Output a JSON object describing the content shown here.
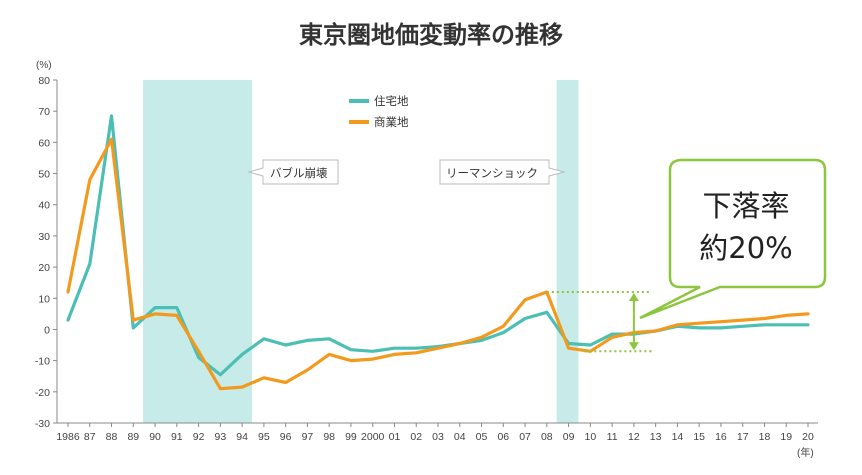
{
  "chart_data": {
    "type": "line",
    "title": "東京圏地価変動率の推移",
    "ylabel": "(%)",
    "xlabel": "(年)",
    "ylim": [
      -30,
      80
    ],
    "yticks": [
      80,
      70,
      60,
      50,
      40,
      30,
      20,
      10,
      0,
      -10,
      -20,
      -30
    ],
    "ytick_labels": [
      "80",
      "70",
      "60",
      "50",
      "40",
      "30",
      "20",
      "10",
      "0",
      "-10",
      "-20",
      "-30"
    ],
    "categories": [
      "1986",
      "87",
      "88",
      "89",
      "90",
      "91",
      "92",
      "93",
      "94",
      "95",
      "96",
      "97",
      "98",
      "99",
      "2000",
      "01",
      "02",
      "03",
      "04",
      "05",
      "06",
      "07",
      "08",
      "09",
      "10",
      "11",
      "12",
      "13",
      "14",
      "15",
      "16",
      "17",
      "18",
      "19",
      "20"
    ],
    "series": [
      {
        "name": "住宅地",
        "color": "#4bbfb3",
        "values": [
          3,
          21,
          68.5,
          0.5,
          7,
          7,
          -9,
          -14.5,
          -8,
          -3,
          -5,
          -3.5,
          -3,
          -6.5,
          -7,
          -6,
          -6,
          -5.5,
          -4.5,
          -3.5,
          -1,
          3.5,
          5.5,
          -4.5,
          -5,
          -1.5,
          -1.5,
          -0.5,
          1,
          0.5,
          0.5,
          1,
          1.5,
          1.5,
          1.5
        ]
      },
      {
        "name": "商業地",
        "color": "#f39a1e",
        "values": [
          12,
          48,
          61,
          3,
          5,
          4.5,
          -7,
          -19,
          -18.5,
          -15.5,
          -17,
          -13,
          -8,
          -10,
          -9.5,
          -8,
          -7.5,
          -6,
          -4.5,
          -2.5,
          1,
          9.5,
          12,
          -6,
          -7,
          -2.5,
          -1,
          -0.5,
          1.5,
          2,
          2.5,
          3,
          3.5,
          4.5,
          5
        ]
      }
    ],
    "shaded_periods": [
      {
        "from": "89",
        "to": "94",
        "label": "バブル崩壊"
      },
      {
        "from": "08",
        "to": "09",
        "label": "リーマンショック"
      }
    ],
    "callout": {
      "line1": "下落率",
      "line2": "約20%"
    },
    "legend_position": "top-center",
    "grid": false,
    "colors": {
      "shade": "#c6ebe8",
      "axis": "#888888",
      "bracket": "#8cc63f",
      "callout_border": "#8cc63f"
    }
  }
}
